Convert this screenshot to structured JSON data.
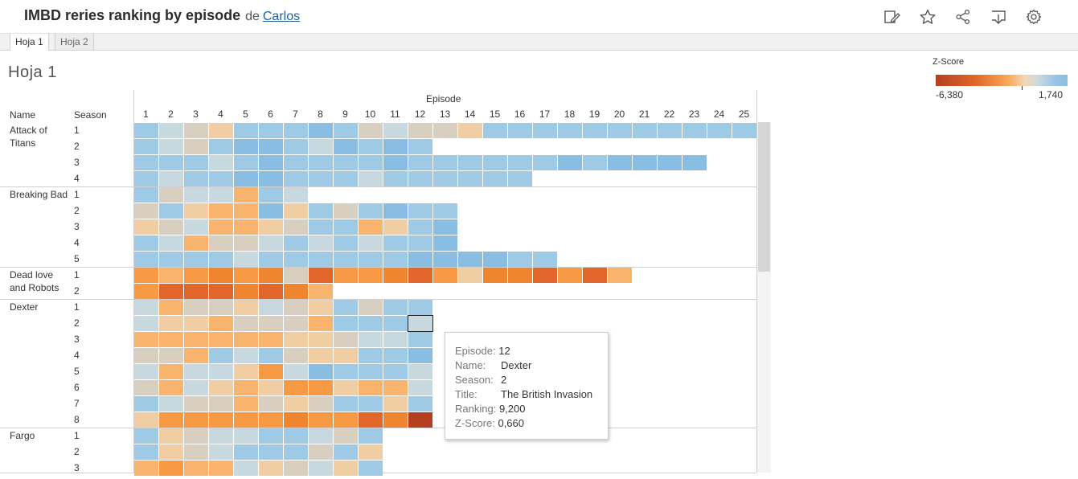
{
  "header": {
    "title": "IMBD reries ranking by episode",
    "by_label": "de",
    "author": "Carlos",
    "icons": [
      "edit-icon",
      "star-icon",
      "share-icon",
      "download-icon",
      "settings-icon"
    ]
  },
  "tabs": [
    {
      "label": "Hoja 1",
      "active": true
    },
    {
      "label": "Hoja 2",
      "active": false
    }
  ],
  "sheet_title": "Hoja 1",
  "legend": {
    "title": "Z-Score",
    "min": "-6,380",
    "max": "1,740",
    "colors": [
      "#b5401f",
      "#e0662a",
      "#f8a85a",
      "#f3d7b8",
      "#c9d8de",
      "#9ac6e4",
      "#89bde2"
    ]
  },
  "headers": {
    "episode": "Episode",
    "name": "Name",
    "season": "Season",
    "episodes": [
      "1",
      "2",
      "3",
      "4",
      "5",
      "6",
      "7",
      "8",
      "9",
      "10",
      "11",
      "12",
      "13",
      "14",
      "15",
      "16",
      "17",
      "18",
      "19",
      "20",
      "21",
      "22",
      "23",
      "24",
      "25"
    ]
  },
  "palette": {
    "1": "#9fcae6",
    "2": "#89bde2",
    "3": "#c7d8de",
    "4": "#d9cfc0",
    "5": "#f0cda3",
    "6": "#f8b46c",
    "7": "#f79a43",
    "8": "#f0852f",
    "9": "#e0662a",
    "0": "#b5401f"
  },
  "series": [
    {
      "name": "Attack of Titans",
      "seasons": [
        {
          "season": "1",
          "codes": "1345111214344511111111111"
        },
        {
          "season": "2",
          "codes": "134122132121"
        },
        {
          "season": "3",
          "codes": "11131211112111111212222"
        },
        {
          "season": "4",
          "codes": "1311221113111111"
        }
      ]
    },
    {
      "name": "Breaking Bad",
      "seasons": [
        {
          "season": "1",
          "codes": "1433613"
        },
        {
          "season": "2",
          "codes": "4156625141211"
        },
        {
          "season": "3",
          "codes": "5436654116512"
        },
        {
          "season": "4",
          "codes": "1364431313112"
        },
        {
          "season": "5",
          "codes": "11113111111222211"
        }
      ]
    },
    {
      "name": "Dead love and Robots",
      "seasons": [
        {
          "season": "1",
          "codes": "76787849778975889796"
        },
        {
          "season": "2",
          "codes": "79998986"
        }
      ]
    },
    {
      "name": "Dexter",
      "seasons": [
        {
          "season": "1",
          "codes": "364453451411"
        },
        {
          "season": "2",
          "codes": "355644461113"
        },
        {
          "season": "3",
          "codes": "666666554331"
        },
        {
          "season": "4",
          "codes": "446131455112"
        },
        {
          "season": "5",
          "codes": "363357321113"
        },
        {
          "season": "6",
          "codes": "463565775663"
        },
        {
          "season": "7",
          "codes": "134464541151"
        },
        {
          "season": "8",
          "codes": "577777877980"
        }
      ]
    },
    {
      "name": "Fargo",
      "seasons": [
        {
          "season": "1",
          "codes": "1543311341"
        },
        {
          "season": "2",
          "codes": "1543111415"
        },
        {
          "season": "3",
          "codes": "6766354351"
        }
      ]
    }
  ],
  "tooltip": {
    "rows": [
      {
        "key": "Episode:",
        "value": "12"
      },
      {
        "key": "Name:",
        "value": "Dexter"
      },
      {
        "key": "Season:",
        "value": "2"
      },
      {
        "key": "Title:",
        "value": "The British Invasion"
      },
      {
        "key": "Ranking:",
        "value": "9,200"
      },
      {
        "key": "Z-Score:",
        "value": "0,660"
      }
    ]
  }
}
